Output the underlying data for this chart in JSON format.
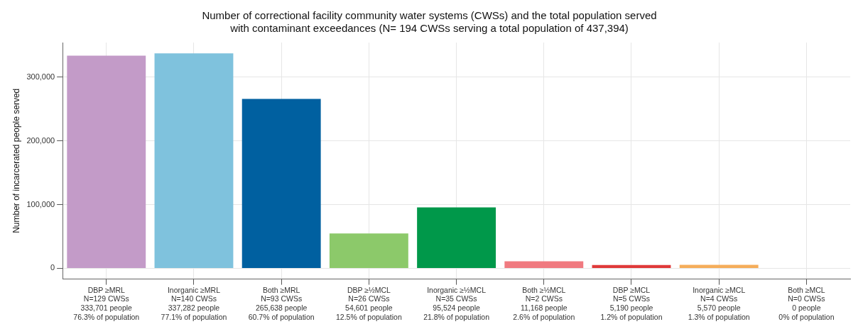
{
  "chart_data": {
    "type": "bar",
    "title": "Number of correctional facility community water systems (CWSs) and the total population served\nwith contaminant exceedances (N= 194 CWSs serving a total population of 437,394)",
    "ylabel": "Number of incarcerated people served",
    "categories": [
      "DBP ≥MRL\nN=129 CWSs\n333,701 people\n76.3% of population",
      "Inorganic ≥MRL\nN=140 CWSs\n337,282 people\n77.1% of population",
      "Both ≥MRL\nN=93 CWSs\n265,638 people\n60.7% of population",
      "DBP ≥½MCL\nN=26 CWSs\n54,601 people\n12.5% of population",
      "Inorganic ≥½MCL\nN=35 CWSs\n95,524 people\n21.8% of population",
      "Both ≥½MCL\nN=2 CWSs\n11,168 people\n2.6% of population",
      "DBP ≥MCL\nN=5 CWSs\n5,190 people\n1.2% of population",
      "Inorganic ≥MCL\nN=4 CWSs\n5,570 people\n1.3% of population",
      "Both ≥MCL\nN=0 CWSs\n0 people\n0% of population"
    ],
    "values": [
      333701,
      337282,
      265638,
      54601,
      95524,
      11168,
      5190,
      5570,
      0
    ],
    "colors": [
      "#c39bc8",
      "#7fc2dd",
      "#0060a0",
      "#8cc96a",
      "#00984a",
      "#f07a80",
      "#e03a3a",
      "#f5ad5a",
      "#999999"
    ],
    "ylim": [
      -16864,
      354146
    ],
    "yticks": [
      {
        "value": 0,
        "label": "0"
      },
      {
        "value": 100000,
        "label": "100,000"
      },
      {
        "value": 200000,
        "label": "200,000"
      },
      {
        "value": 300000,
        "label": "300,000"
      }
    ],
    "grid": true,
    "legend": false
  }
}
